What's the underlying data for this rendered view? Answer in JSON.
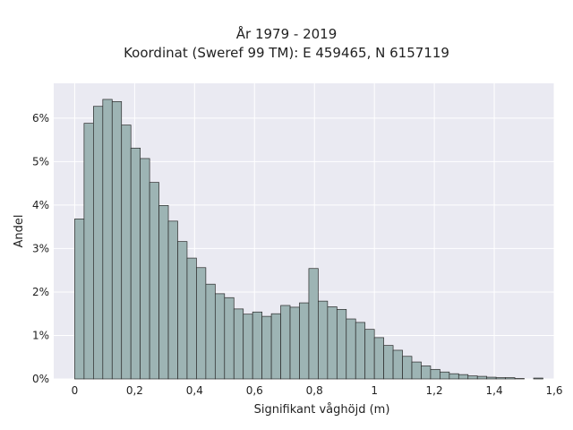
{
  "chart_data": {
    "type": "bar",
    "title": "År 1979 - 2019",
    "subtitle": "Koordinat (Sweref 99 TM): E 459465, N 6157119",
    "xlabel": "Signifikant våghöjd (m)",
    "ylabel": "Andel",
    "xlim": [
      -0.07,
      1.6
    ],
    "ylim": [
      0,
      6.8
    ],
    "grid": true,
    "bin_start": 0.0,
    "bin_width": 0.03125,
    "x_ticks": [
      0,
      0.2,
      0.4,
      0.6,
      0.8,
      1.0,
      1.2,
      1.4,
      1.6
    ],
    "x_tick_labels": [
      "0",
      "0,2",
      "0,4",
      "0,6",
      "0,8",
      "1",
      "1,2",
      "1,4",
      "1,6"
    ],
    "y_ticks": [
      0,
      1,
      2,
      3,
      4,
      5,
      6
    ],
    "y_tick_labels": [
      "0%",
      "1%",
      "2%",
      "3%",
      "4%",
      "5%",
      "6%"
    ],
    "values": [
      3.68,
      5.88,
      6.27,
      6.43,
      6.38,
      5.84,
      5.31,
      5.07,
      4.52,
      3.99,
      3.63,
      3.16,
      2.78,
      2.56,
      2.18,
      1.96,
      1.87,
      1.61,
      1.49,
      1.54,
      1.44,
      1.5,
      1.69,
      1.65,
      1.75,
      2.54,
      1.79,
      1.66,
      1.6,
      1.38,
      1.3,
      1.14,
      0.95,
      0.77,
      0.66,
      0.52,
      0.39,
      0.3,
      0.22,
      0.16,
      0.12,
      0.1,
      0.07,
      0.06,
      0.04,
      0.03,
      0.03,
      0.01,
      0.0,
      0.02
    ],
    "colors": {
      "plot_bg": "#eaeaf2",
      "bar_fill": "#9db4b4",
      "bar_edge": "#2a2a2a",
      "grid": "#ffffff"
    }
  }
}
